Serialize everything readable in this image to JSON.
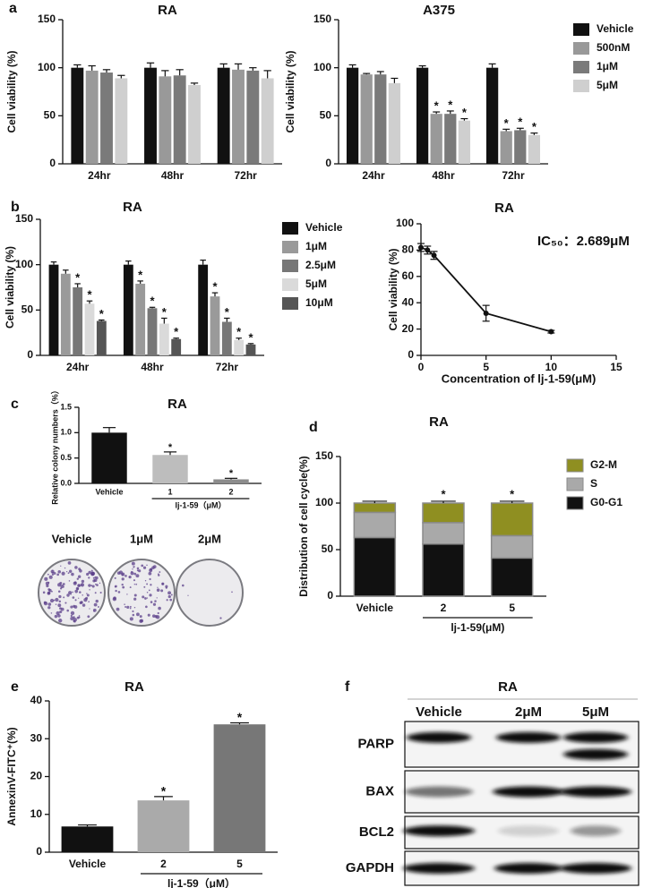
{
  "chart_data": [
    {
      "type": "bar",
      "panel": "a",
      "title": "RA",
      "ylabel": "Cell viability (%)",
      "categories": [
        "24hr",
        "48hr",
        "72hr"
      ],
      "ylim": [
        0,
        150
      ],
      "yticks": [
        0,
        50,
        100,
        150
      ],
      "series": [
        {
          "color": "#111111",
          "values": [
            100,
            100,
            100
          ],
          "errors": [
            3,
            5,
            4
          ]
        },
        {
          "color": "#999999",
          "values": [
            97,
            91,
            98
          ],
          "errors": [
            5,
            6,
            6
          ]
        },
        {
          "color": "#7a7a7a",
          "values": [
            95,
            92,
            97
          ],
          "errors": [
            3,
            6,
            3
          ]
        },
        {
          "color": "#cfcfcf",
          "values": [
            89,
            82,
            89
          ],
          "errors": [
            3,
            2,
            8
          ]
        }
      ]
    },
    {
      "type": "bar",
      "title": "A375",
      "ylabel": "Cell viability (%)",
      "legend": "right",
      "categories": [
        "24hr",
        "48hr",
        "72hr"
      ],
      "ylim": [
        0,
        150
      ],
      "yticks": [
        0,
        50,
        100,
        150
      ],
      "series": [
        {
          "name": "Vehicle",
          "color": "#111111",
          "values": [
            100,
            100,
            100
          ],
          "errors": [
            3,
            2,
            4
          ],
          "stars": [
            null,
            null,
            null
          ]
        },
        {
          "name": "500nM",
          "color": "#999999",
          "values": [
            93,
            52,
            34
          ],
          "errors": [
            1,
            2,
            2
          ],
          "stars": [
            null,
            "*",
            "*"
          ]
        },
        {
          "name": "1μM",
          "color": "#7a7a7a",
          "values": [
            93,
            52,
            35
          ],
          "errors": [
            3,
            3,
            2
          ],
          "stars": [
            null,
            "*",
            "*"
          ]
        },
        {
          "name": "5μM",
          "color": "#cfcfcf",
          "values": [
            84,
            45,
            30
          ],
          "errors": [
            5,
            2,
            2
          ],
          "stars": [
            null,
            "*",
            "*"
          ]
        }
      ]
    },
    {
      "type": "bar",
      "panel": "b",
      "title": "RA",
      "ylabel": "Cell viability (%)",
      "legend": "right",
      "categories": [
        "24hr",
        "48hr",
        "72hr"
      ],
      "ylim": [
        0,
        150
      ],
      "yticks": [
        0,
        50,
        100,
        150
      ],
      "series": [
        {
          "name": "Vehicle",
          "color": "#111111",
          "values": [
            100,
            100,
            100
          ],
          "errors": [
            3,
            4,
            5
          ],
          "stars": [
            null,
            null,
            null
          ]
        },
        {
          "name": "1μM",
          "color": "#9a9a9a",
          "values": [
            90,
            79,
            65
          ],
          "errors": [
            4,
            3,
            4
          ],
          "stars": [
            null,
            "*",
            "*"
          ]
        },
        {
          "name": "2.5μM",
          "color": "#777777",
          "values": [
            75,
            52,
            37
          ],
          "errors": [
            4,
            1,
            4
          ],
          "stars": [
            "*",
            "*",
            "*"
          ]
        },
        {
          "name": "5μM",
          "color": "#dadada",
          "values": [
            57,
            35,
            17
          ],
          "errors": [
            3,
            6,
            2
          ],
          "stars": [
            "*",
            "*",
            "*"
          ]
        },
        {
          "name": "10μM",
          "color": "#555555",
          "values": [
            38,
            18,
            12
          ],
          "errors": [
            1,
            1,
            1
          ],
          "stars": [
            "*",
            "*",
            "*"
          ]
        }
      ]
    },
    {
      "type": "line",
      "title": "RA",
      "ylabel": "Cell viability (%)",
      "xlabel": "Concentration of lj-1-59(μM)",
      "annotation": "IC₅₀：2.689μM",
      "x": [
        0,
        0.5,
        1,
        5,
        10
      ],
      "values": [
        82,
        80,
        76,
        32,
        18
      ],
      "errors": [
        3,
        3,
        3,
        6,
        1
      ],
      "color": "#111111",
      "xlim": [
        0,
        15
      ],
      "xticks": [
        0,
        5,
        10,
        15
      ],
      "ylim": [
        0,
        100
      ],
      "yticks": [
        0,
        20,
        40,
        60,
        80,
        100
      ]
    },
    {
      "type": "bar",
      "panel": "c",
      "title": "RA",
      "ylabel": "Relative colony numbers（%）",
      "xlabel": "lj-1-59（μM）",
      "categories": [
        "Vehicle",
        "1",
        "2"
      ],
      "values": [
        1.0,
        0.56,
        0.08
      ],
      "errors": [
        0.1,
        0.06,
        0.02
      ],
      "colors": [
        "#111111",
        "#bdbdbd",
        "#8c8c8c"
      ],
      "stars": [
        null,
        "*",
        "*"
      ],
      "ylim": [
        0,
        1.5
      ],
      "yticks": [
        {
          "value": 0,
          "label": "0.0"
        },
        {
          "value": 0.5,
          "label": "0.5"
        },
        {
          "value": 1,
          "label": "1.0"
        },
        {
          "value": 1.5,
          "label": "1.5"
        }
      ],
      "colony_labels": [
        "Vehicle",
        "1μM",
        "2μM"
      ]
    },
    {
      "type": "bar",
      "panel": "d",
      "title": "RA",
      "ylabel": "Distribution of cell cycle(%)",
      "xlabel": "lj-1-59(μM)",
      "stacked": true,
      "legend": "right",
      "categories": [
        "Vehicle",
        "2",
        "5"
      ],
      "stars": [
        null,
        "*",
        "*"
      ],
      "ylim": [
        0,
        150
      ],
      "yticks": [
        0,
        50,
        100,
        150
      ],
      "series": [
        {
          "name": "G0-G1",
          "color": "#111111",
          "values": [
            63,
            56,
            41
          ],
          "errors": [
            4,
            2,
            3
          ]
        },
        {
          "name": "S",
          "color": "#a9a9a9",
          "values": [
            27,
            23,
            24
          ],
          "errors": [
            3,
            3,
            1
          ]
        },
        {
          "name": "G2-M",
          "color": "#8f8f21",
          "values": [
            10,
            21,
            35
          ],
          "errors": [
            2,
            2,
            2
          ]
        }
      ]
    },
    {
      "type": "bar",
      "panel": "e",
      "title": "RA",
      "ylabel": "AnnexinV-FITC⁺(%)",
      "xlabel": "lj-1-59（μM）",
      "categories": [
        "Vehicle",
        "2",
        "5"
      ],
      "values": [
        6.8,
        13.7,
        33.8
      ],
      "errors": [
        0.4,
        1.0,
        0.4
      ],
      "colors": [
        "#111111",
        "#aaaaaa",
        "#777777"
      ],
      "stars": [
        null,
        "*",
        "*"
      ],
      "ylim": [
        0,
        40
      ],
      "yticks": [
        0,
        10,
        20,
        30,
        40
      ]
    }
  ],
  "blot": {
    "panel": "f",
    "title": "RA",
    "lanes": [
      "Vehicle",
      "2μM",
      "5μM"
    ],
    "rows": [
      "PARP",
      "BAX",
      "BCL2",
      "GAPDH"
    ]
  }
}
